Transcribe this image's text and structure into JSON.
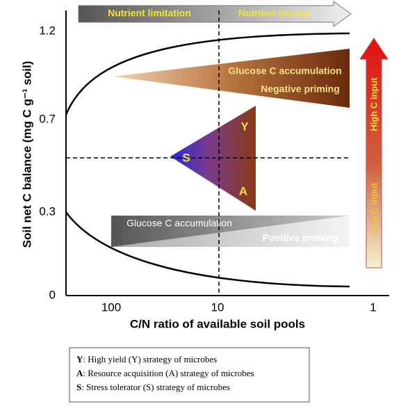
{
  "header_arrow": {
    "left": "Nutrient limitation",
    "right": "Nutrient excess"
  },
  "y_axis": {
    "title": "Soil net C balance (mg C g⁻¹ soil)",
    "ticks": [
      "1.2",
      "0.7",
      "0.3",
      "0"
    ]
  },
  "x_axis": {
    "title": "C/N ratio of available soil pools",
    "ticks": [
      "100",
      "10",
      "1"
    ]
  },
  "upper_wedge": {
    "line1": "Glucose C accumulation",
    "line2": "Negative priming"
  },
  "lower_wedge": {
    "line1": "Glucose C accumulation",
    "line2": "Positive priming"
  },
  "triangle": {
    "s": "S",
    "y": "Y",
    "a": "A"
  },
  "side_arrow": {
    "top": "High C input",
    "bottom": "Low C input"
  },
  "legend": [
    {
      "key": "Y",
      "text": ": High yield (Y) strategy of microbes"
    },
    {
      "key": "A",
      "text": ": Resource acquisition (A) strategy of microbes"
    },
    {
      "key": "S",
      "text": ": Stress tolerator (S) strategy of microbes"
    }
  ]
}
